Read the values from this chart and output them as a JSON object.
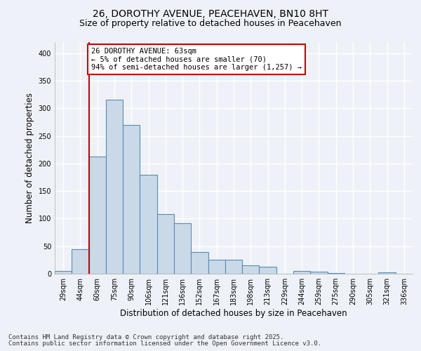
{
  "title_line1": "26, DOROTHY AVENUE, PEACEHAVEN, BN10 8HT",
  "title_line2": "Size of property relative to detached houses in Peacehaven",
  "xlabel": "Distribution of detached houses by size in Peacehaven",
  "ylabel": "Number of detached properties",
  "categories": [
    "29sqm",
    "44sqm",
    "60sqm",
    "75sqm",
    "90sqm",
    "106sqm",
    "121sqm",
    "136sqm",
    "152sqm",
    "167sqm",
    "183sqm",
    "198sqm",
    "213sqm",
    "229sqm",
    "244sqm",
    "259sqm",
    "275sqm",
    "290sqm",
    "305sqm",
    "321sqm",
    "336sqm"
  ],
  "values": [
    5,
    44,
    213,
    315,
    270,
    180,
    108,
    92,
    40,
    25,
    25,
    15,
    13,
    0,
    5,
    4,
    1,
    0,
    0,
    2,
    0
  ],
  "bar_color": "#c9d9e8",
  "bar_edge_color": "#5b8ab0",
  "property_line_color": "#cc0000",
  "property_line_bar_index": 2,
  "annotation_text": "26 DOROTHY AVENUE: 63sqm\n← 5% of detached houses are smaller (70)\n94% of semi-detached houses are larger (1,257) →",
  "annotation_box_color": "#ffffff",
  "annotation_box_edge_color": "#cc0000",
  "ylim": [
    0,
    420
  ],
  "yticks": [
    0,
    50,
    100,
    150,
    200,
    250,
    300,
    350,
    400
  ],
  "background_color": "#eef2f8",
  "grid_color": "#ffffff",
  "footer_line1": "Contains HM Land Registry data © Crown copyright and database right 2025.",
  "footer_line2": "Contains public sector information licensed under the Open Government Licence v3.0.",
  "title_fontsize": 10,
  "subtitle_fontsize": 9,
  "axis_label_fontsize": 8.5,
  "tick_fontsize": 7,
  "annotation_fontsize": 7.5,
  "footer_fontsize": 6.5
}
